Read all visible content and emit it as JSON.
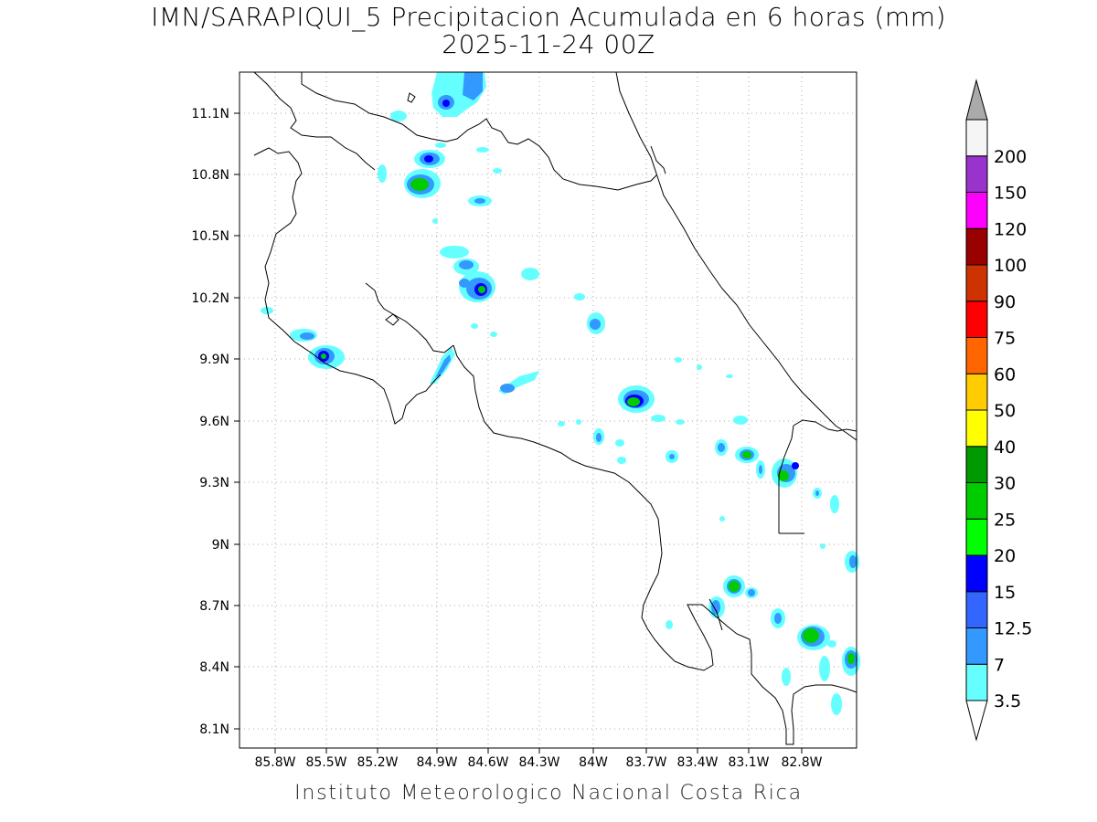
{
  "title_line1": "IMN/SARAPIQUI_5 Precipitacion Acumulada en 6 horas (mm)",
  "title_line2": "2025-11-24 00Z",
  "credit": "Instituto Meteorologico Nacional Costa Rica",
  "axes": {
    "lon_ticks": [
      "85.8W",
      "85.5W",
      "85.2W",
      "84.9W",
      "84.6W",
      "84.3W",
      "84W",
      "83.7W",
      "83.4W",
      "83.1W",
      "82.8W"
    ],
    "lat_ticks": [
      "11.1N",
      "10.8N",
      "10.5N",
      "10.2N",
      "9.9N",
      "9.6N",
      "9.3N",
      "9N",
      "8.7N",
      "8.4N",
      "8.1N"
    ],
    "lon_range": [
      -86.13,
      -82.5
    ],
    "lat_range": [
      8.0,
      11.3
    ],
    "grid": "dotted"
  },
  "colorbar": {
    "labels": [
      "3.5",
      "7",
      "12.5",
      "15",
      "20",
      "25",
      "30",
      "40",
      "50",
      "60",
      "75",
      "90",
      "100",
      "120",
      "150",
      "200"
    ],
    "colors": [
      "#66ffff",
      "#3399ff",
      "#3366ff",
      "#0000ff",
      "#00ff00",
      "#00cc00",
      "#009900",
      "#ffff00",
      "#ffcc00",
      "#ff6600",
      "#ff0000",
      "#cc3300",
      "#990000",
      "#ff00ff",
      "#9933cc",
      "#f5f5f5"
    ],
    "over_color": "#aaaaaa",
    "under_color": "#ffffff"
  }
}
